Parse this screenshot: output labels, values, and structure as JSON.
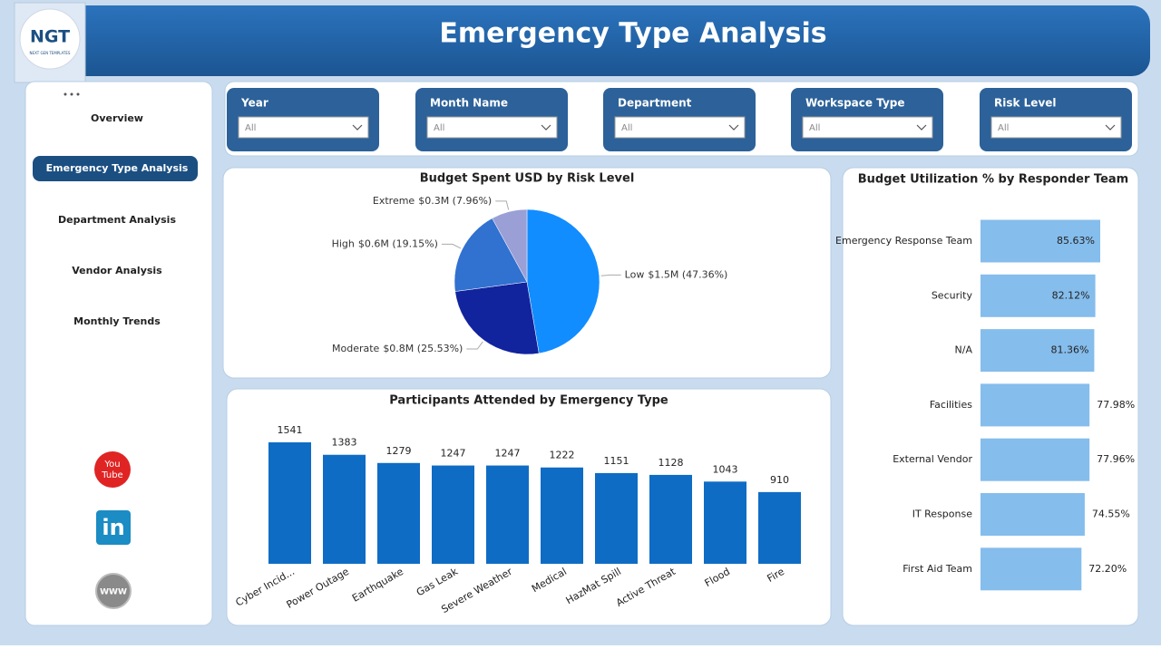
{
  "header": {
    "title": "Emergency Type Analysis",
    "logo": "NGT",
    "logo_tagline": "NEXT GEN TEMPLATES"
  },
  "nav": {
    "items": [
      "Overview",
      "Emergency Type Analysis",
      "Department Analysis",
      "Vendor Analysis",
      "Monthly Trends"
    ],
    "active": 1
  },
  "social": {
    "youtube_top": "You",
    "youtube_bottom": "Tube",
    "linkedin": "in",
    "web": "WWW"
  },
  "filters": [
    {
      "label": "Year",
      "value": "All"
    },
    {
      "label": "Month Name",
      "value": "All"
    },
    {
      "label": "Department",
      "value": "All"
    },
    {
      "label": "Workspace Type",
      "value": "All"
    },
    {
      "label": "Risk Level",
      "value": "All"
    }
  ],
  "chart_data": [
    {
      "type": "pie",
      "title": "Budget Spent USD by Risk Level",
      "categories": [
        "Low",
        "Moderate",
        "High",
        "Extreme"
      ],
      "values": [
        47.36,
        25.53,
        19.15,
        7.96
      ],
      "value_labels": [
        "$1.5M (47.36%)",
        "$0.8M (25.53%)",
        "$0.6M (19.15%)",
        "$0.3M (7.96%)"
      ],
      "colors": [
        "#118dff",
        "#12239e",
        "#3171d0",
        "#9a9fd6"
      ]
    },
    {
      "type": "bar",
      "title": "Participants Attended by Emergency Type",
      "categories": [
        "Cyber Incid...",
        "Power Outage",
        "Earthquake",
        "Gas Leak",
        "Severe Weather",
        "Medical",
        "HazMat Spill",
        "Active Threat",
        "Flood",
        "Fire"
      ],
      "values": [
        1541,
        1383,
        1279,
        1247,
        1247,
        1222,
        1151,
        1128,
        1043,
        910
      ],
      "color": "#0f6cc4"
    },
    {
      "type": "bar",
      "orientation": "horizontal",
      "title": "Budget Utilization % by Responder Team",
      "categories": [
        "Emergency Response Team",
        "Security",
        "N/A",
        "Facilities",
        "External Vendor",
        "IT Response",
        "First Aid Team"
      ],
      "values": [
        85.63,
        82.12,
        81.36,
        77.98,
        77.96,
        74.55,
        72.2
      ],
      "value_labels": [
        "85.63%",
        "82.12%",
        "81.36%",
        "77.98%",
        "77.96%",
        "74.55%",
        "72.20%"
      ],
      "color": "#85bdec"
    }
  ]
}
